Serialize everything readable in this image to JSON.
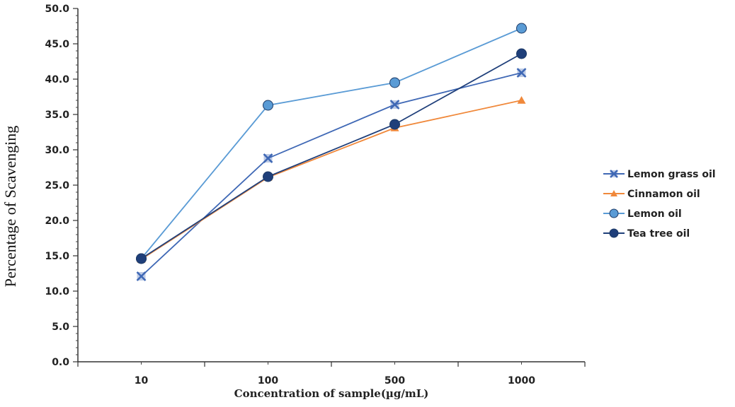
{
  "chart_data": {
    "type": "line",
    "categories": [
      "10",
      "100",
      "500",
      "1000"
    ],
    "xlabel": "Concentration of sample(µg/mL)",
    "ylabel": "Percentage of Scavenging",
    "ylim": [
      0,
      50
    ],
    "yticks": [
      "0.0",
      "5.0",
      "10.0",
      "15.0",
      "20.0",
      "25.0",
      "30.0",
      "35.0",
      "40.0",
      "45.0",
      "50.0"
    ],
    "grid": false,
    "legend_position": "right",
    "series": [
      {
        "name": "Lemon grass oil",
        "values": [
          12.1,
          28.8,
          36.4,
          40.9
        ],
        "color": "#3f68b5",
        "marker": "x-square"
      },
      {
        "name": "Cinnamon oil",
        "values": [
          14.5,
          26.1,
          33.1,
          37.0
        ],
        "color": "#f0883a",
        "marker": "triangle"
      },
      {
        "name": "Lemon oil",
        "values": [
          14.6,
          36.3,
          39.5,
          47.2
        ],
        "color": "#5a9bd5",
        "marker": "circle"
      },
      {
        "name": "Tea tree oil",
        "values": [
          14.6,
          26.2,
          33.6,
          43.6
        ],
        "color": "#1f3f7a",
        "marker": "circle"
      }
    ]
  }
}
